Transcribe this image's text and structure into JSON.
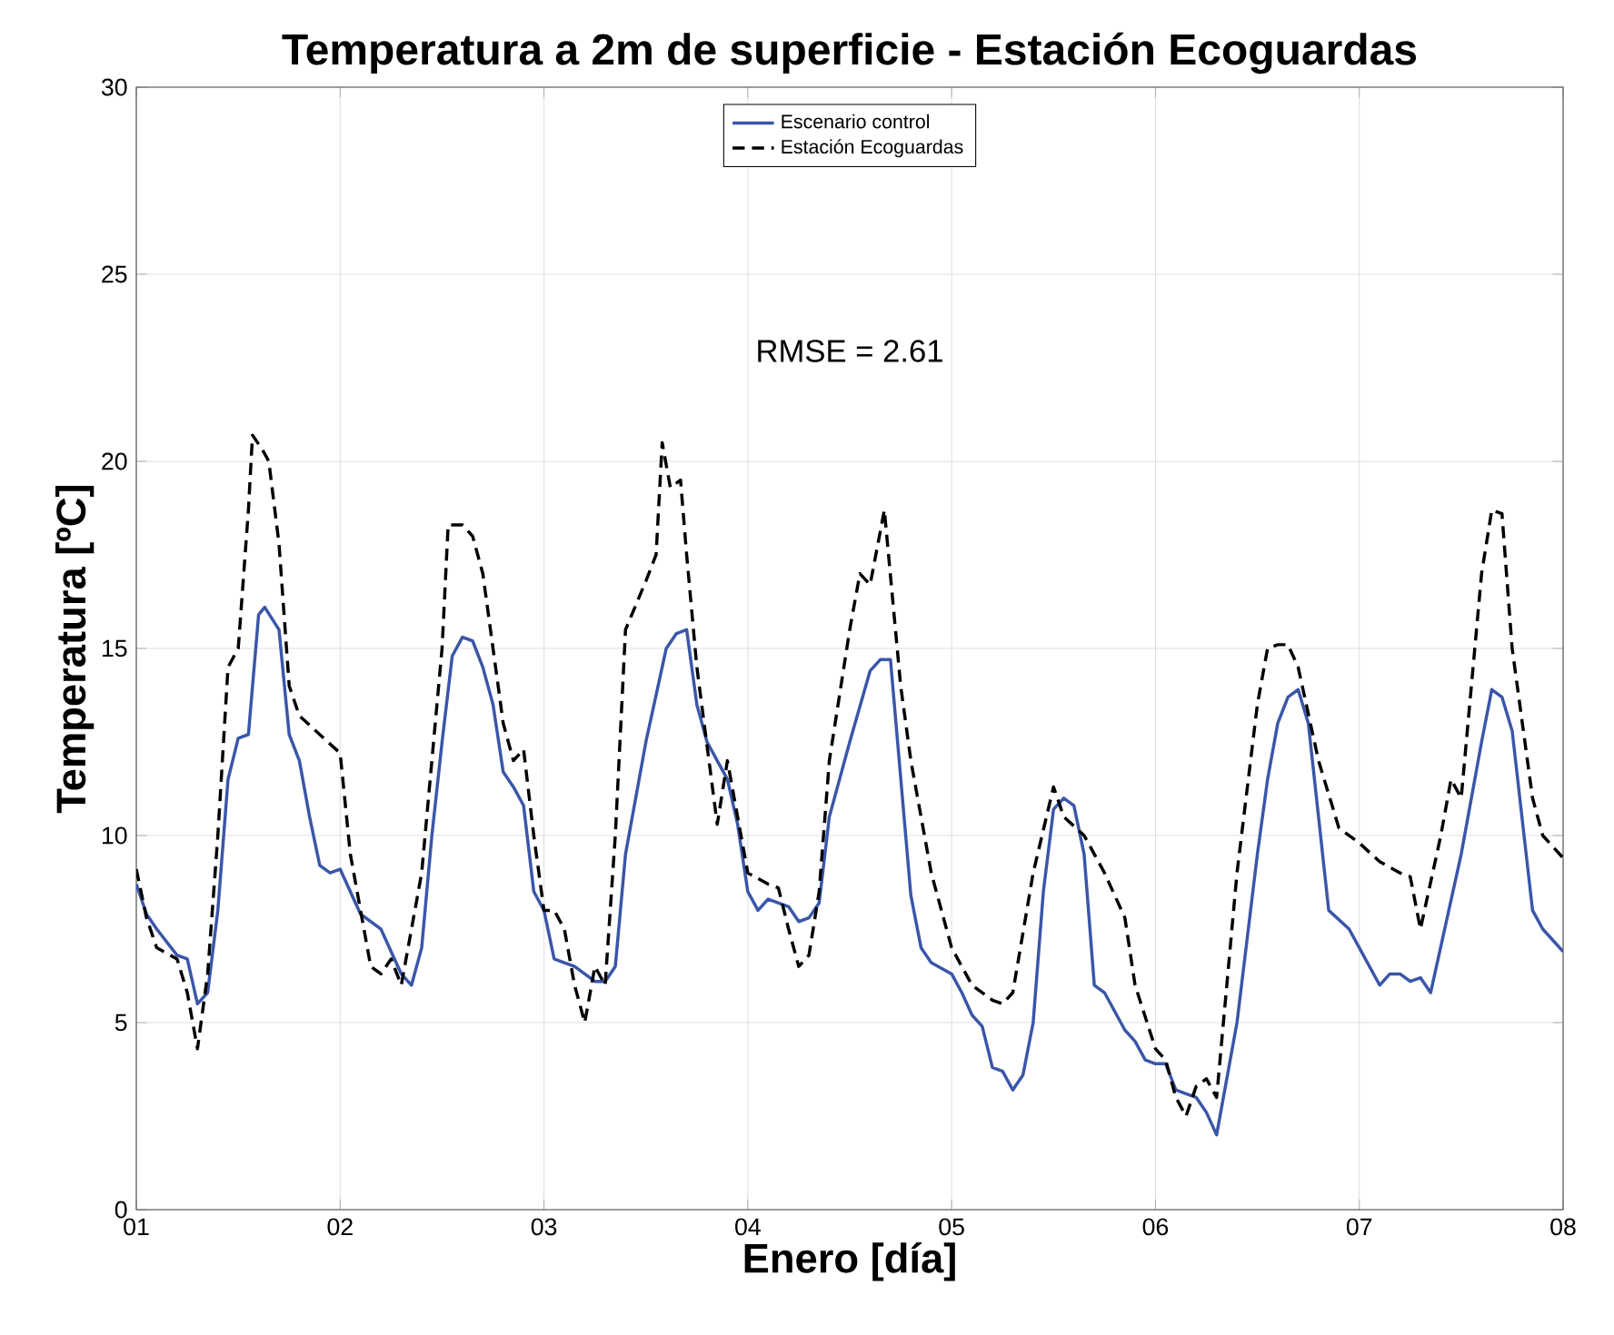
{
  "chart_data": {
    "type": "line",
    "title": "Temperatura a 2m de superficie - Estación Ecoguardas",
    "xlabel": "Enero [día]",
    "ylabel": "Temperatura [ºC]",
    "annotations": [
      "RMSE = 2.61"
    ],
    "xlim": [
      1,
      8
    ],
    "xticks": [
      {
        "value": 1,
        "label": "01"
      },
      {
        "value": 2,
        "label": "02"
      },
      {
        "value": 3,
        "label": "03"
      },
      {
        "value": 4,
        "label": "04"
      },
      {
        "value": 5,
        "label": "05"
      },
      {
        "value": 6,
        "label": "06"
      },
      {
        "value": 7,
        "label": "07"
      },
      {
        "value": 8,
        "label": "08"
      }
    ],
    "ylim": [
      0,
      30
    ],
    "yticks": [
      0,
      5,
      10,
      15,
      20,
      25,
      30
    ],
    "grid": true,
    "legend": "top",
    "marker": "none",
    "series": [
      {
        "name": "Escenario control",
        "color": "#3a56a8",
        "line_style": "solid",
        "x": [
          1.0,
          1.05,
          1.1,
          1.2,
          1.25,
          1.3,
          1.35,
          1.4,
          1.45,
          1.5,
          1.55,
          1.6,
          1.63,
          1.7,
          1.75,
          1.8,
          1.85,
          1.9,
          1.95,
          2.0,
          2.1,
          2.2,
          2.3,
          2.35,
          2.4,
          2.45,
          2.5,
          2.55,
          2.6,
          2.65,
          2.7,
          2.75,
          2.8,
          2.85,
          2.9,
          2.95,
          3.0,
          3.05,
          3.1,
          3.15,
          3.2,
          3.25,
          3.3,
          3.35,
          3.4,
          3.5,
          3.6,
          3.65,
          3.7,
          3.75,
          3.8,
          3.85,
          3.9,
          3.95,
          4.0,
          4.05,
          4.1,
          4.2,
          4.25,
          4.3,
          4.35,
          4.4,
          4.5,
          4.6,
          4.65,
          4.7,
          4.8,
          4.85,
          4.9,
          5.0,
          5.05,
          5.1,
          5.15,
          5.2,
          5.25,
          5.3,
          5.35,
          5.4,
          5.45,
          5.5,
          5.55,
          5.6,
          5.65,
          5.7,
          5.75,
          5.85,
          5.9,
          5.95,
          6.0,
          6.05,
          6.1,
          6.15,
          6.2,
          6.25,
          6.3,
          6.4,
          6.5,
          6.55,
          6.6,
          6.65,
          6.7,
          6.75,
          6.85,
          6.95,
          7.0,
          7.1,
          7.15,
          7.2,
          7.25,
          7.3,
          7.35,
          7.5,
          7.6,
          7.65,
          7.7,
          7.75,
          7.85,
          7.9,
          8.0
        ],
        "values": [
          8.7,
          7.9,
          7.5,
          6.8,
          6.7,
          5.5,
          5.8,
          8.0,
          11.5,
          12.6,
          12.7,
          15.9,
          16.1,
          15.5,
          12.7,
          12.0,
          10.5,
          9.2,
          9.0,
          9.1,
          7.9,
          7.5,
          6.3,
          6.0,
          7.0,
          10.0,
          12.5,
          14.8,
          15.3,
          15.2,
          14.5,
          13.5,
          11.7,
          11.3,
          10.8,
          8.5,
          8.0,
          6.7,
          6.6,
          6.5,
          6.3,
          6.1,
          6.1,
          6.5,
          9.5,
          12.5,
          15.0,
          15.4,
          15.5,
          13.5,
          12.5,
          12.0,
          11.5,
          10.3,
          8.5,
          8.0,
          8.3,
          8.1,
          7.7,
          7.8,
          8.2,
          10.5,
          12.5,
          14.4,
          14.7,
          14.7,
          8.4,
          7.0,
          6.6,
          6.3,
          5.8,
          5.2,
          4.9,
          3.8,
          3.7,
          3.2,
          3.6,
          5.0,
          8.5,
          10.7,
          11.0,
          10.8,
          9.5,
          6.0,
          5.8,
          4.8,
          4.5,
          4.0,
          3.9,
          3.9,
          3.2,
          3.1,
          3.0,
          2.6,
          2.0,
          5.0,
          9.5,
          11.5,
          13.0,
          13.7,
          13.9,
          13.0,
          8.0,
          7.5,
          7.0,
          6.0,
          6.3,
          6.3,
          6.1,
          6.2,
          5.8,
          9.5,
          12.5,
          13.9,
          13.7,
          12.8,
          8.0,
          7.5,
          6.9
        ]
      },
      {
        "name": "Estación Ecoguardas",
        "color": "#000000",
        "line_style": "dashed",
        "x": [
          1.0,
          1.05,
          1.1,
          1.2,
          1.25,
          1.3,
          1.35,
          1.4,
          1.45,
          1.5,
          1.55,
          1.57,
          1.62,
          1.65,
          1.7,
          1.75,
          1.8,
          1.9,
          2.0,
          2.05,
          2.15,
          2.2,
          2.25,
          2.3,
          2.4,
          2.5,
          2.53,
          2.6,
          2.65,
          2.7,
          2.75,
          2.8,
          2.85,
          2.9,
          2.95,
          3.0,
          3.05,
          3.1,
          3.15,
          3.2,
          3.25,
          3.3,
          3.35,
          3.4,
          3.5,
          3.55,
          3.58,
          3.62,
          3.67,
          3.7,
          3.75,
          3.85,
          3.9,
          3.95,
          4.0,
          4.1,
          4.15,
          4.2,
          4.25,
          4.3,
          4.35,
          4.4,
          4.5,
          4.55,
          4.6,
          4.67,
          4.75,
          4.8,
          4.9,
          5.0,
          5.1,
          5.2,
          5.25,
          5.3,
          5.4,
          5.5,
          5.55,
          5.65,
          5.75,
          5.85,
          5.9,
          6.0,
          6.05,
          6.1,
          6.15,
          6.2,
          6.25,
          6.3,
          6.4,
          6.5,
          6.55,
          6.6,
          6.65,
          6.7,
          6.8,
          6.9,
          7.0,
          7.1,
          7.2,
          7.25,
          7.3,
          7.4,
          7.45,
          7.5,
          7.55,
          7.6,
          7.65,
          7.7,
          7.75,
          7.85,
          7.9,
          8.0
        ],
        "values": [
          9.1,
          7.8,
          7.0,
          6.7,
          5.8,
          4.3,
          6.3,
          10.0,
          14.5,
          15.0,
          18.7,
          20.7,
          20.3,
          20.0,
          17.8,
          14.0,
          13.2,
          12.7,
          12.2,
          9.5,
          6.5,
          6.3,
          6.7,
          6.0,
          9.0,
          15.0,
          18.3,
          18.3,
          18.0,
          17.0,
          15.0,
          13.0,
          12.0,
          12.3,
          10.0,
          8.0,
          8.0,
          7.5,
          6.0,
          5.0,
          6.5,
          6.0,
          10.0,
          15.5,
          16.8,
          17.5,
          20.5,
          19.3,
          19.5,
          17.5,
          14.5,
          10.3,
          12.0,
          10.5,
          9.0,
          8.7,
          8.6,
          7.5,
          6.5,
          6.8,
          8.5,
          12.0,
          15.5,
          17.0,
          16.7,
          18.7,
          14.0,
          12.0,
          9.0,
          7.0,
          6.0,
          5.6,
          5.5,
          5.8,
          9.0,
          11.3,
          10.5,
          10.0,
          9.0,
          7.8,
          6.0,
          4.3,
          4.0,
          3.0,
          2.5,
          3.3,
          3.5,
          3.0,
          9.0,
          13.5,
          15.0,
          15.1,
          15.1,
          14.5,
          12.0,
          10.2,
          9.8,
          9.3,
          9.0,
          8.9,
          7.5,
          10.0,
          11.5,
          11.0,
          14.0,
          17.0,
          18.7,
          18.6,
          15.0,
          11.0,
          10.0,
          9.4
        ]
      }
    ]
  }
}
